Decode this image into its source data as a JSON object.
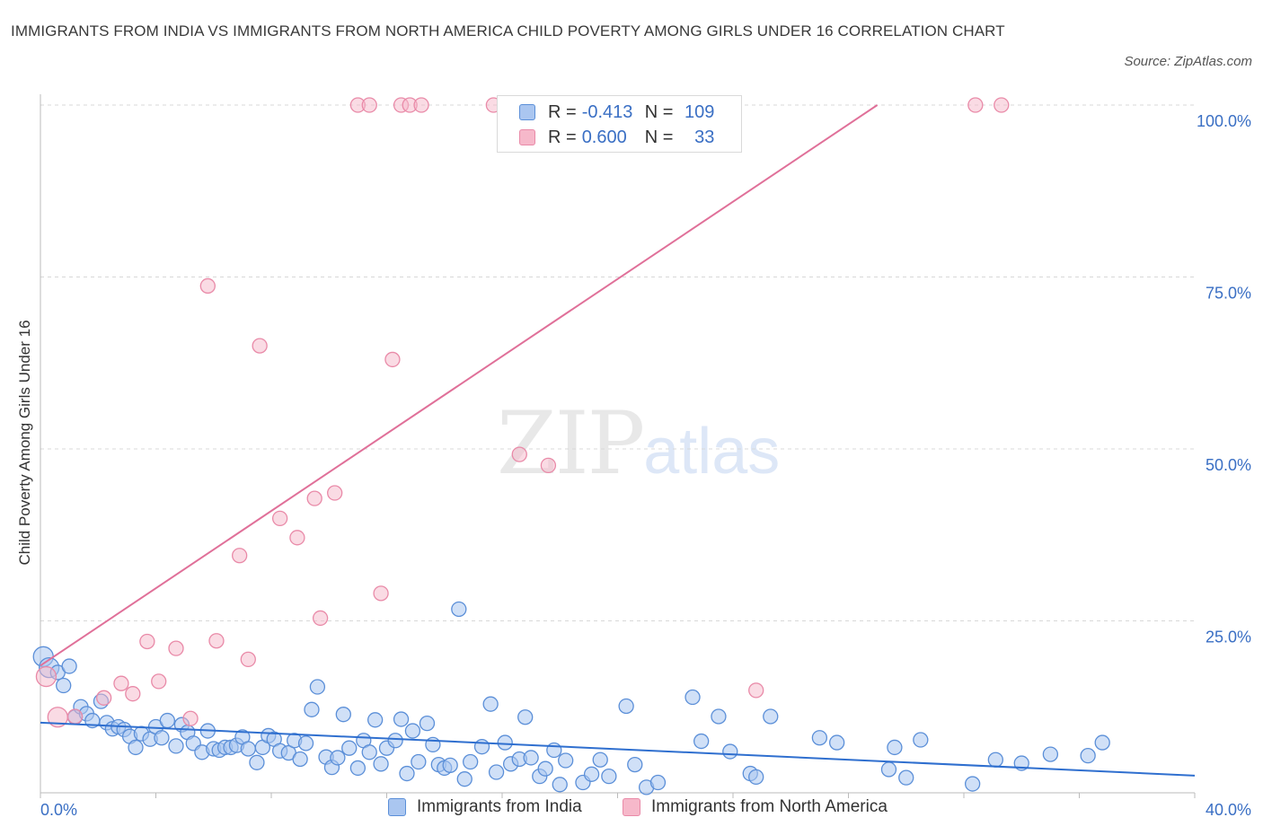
{
  "header": {
    "title": "IMMIGRANTS FROM INDIA VS IMMIGRANTS FROM NORTH AMERICA CHILD POVERTY AMONG GIRLS UNDER 16 CORRELATION CHART",
    "source": "Source: ZipAtlas.com"
  },
  "watermark": {
    "zip": "ZIP",
    "atlas": "atlas"
  },
  "colors": {
    "india_fill": "#aac6f0",
    "india_stroke": "#5b8fd8",
    "india_line": "#2f6fcf",
    "na_fill": "#f6b8ca",
    "na_stroke": "#e98aa8",
    "na_line": "#e07099",
    "tick_label": "#3a6fc4",
    "grid": "#d8d8d8"
  },
  "legend": {
    "rows": [
      {
        "r_label": "R =",
        "r_value": "-0.413",
        "n_label": "N =",
        "n_value": "109"
      },
      {
        "r_label": "R =",
        "r_value": "0.600",
        "n_label": "N =",
        "n_value": "33"
      }
    ]
  },
  "bottom_legend": {
    "india": "Immigrants from India",
    "na": "Immigrants from North America"
  },
  "chart_data": {
    "type": "scatter",
    "title": "IMMIGRANTS FROM INDIA VS IMMIGRANTS FROM NORTH AMERICA CHILD POVERTY AMONG GIRLS UNDER 16 CORRELATION CHART",
    "xlabel": "",
    "ylabel": "Child Poverty Among Girls Under 16",
    "xlim": [
      0,
      40
    ],
    "ylim": [
      0,
      100
    ],
    "x_tick_labels": [
      {
        "value": 0,
        "label": "0.0%"
      },
      {
        "value": 40,
        "label": "40.0%"
      }
    ],
    "y_tick_labels": [
      {
        "value": 25,
        "label": "25.0%"
      },
      {
        "value": 50,
        "label": "50.0%"
      },
      {
        "value": 75,
        "label": "75.0%"
      },
      {
        "value": 100,
        "label": "100.0%"
      }
    ],
    "grid": true,
    "legend_position": "top-center",
    "series": [
      {
        "name": "Immigrants from India",
        "r": -0.413,
        "n": 109,
        "trend": {
          "x": [
            0,
            40
          ],
          "y": [
            10.2,
            2.5
          ]
        },
        "points": [
          [
            0.1,
            19.8
          ],
          [
            0.3,
            18.2
          ],
          [
            0.6,
            17.5
          ],
          [
            0.8,
            15.6
          ],
          [
            1.0,
            18.4
          ],
          [
            1.2,
            11.0
          ],
          [
            1.4,
            12.5
          ],
          [
            1.6,
            11.5
          ],
          [
            1.8,
            10.5
          ],
          [
            2.1,
            13.3
          ],
          [
            2.3,
            10.2
          ],
          [
            2.5,
            9.3
          ],
          [
            2.7,
            9.6
          ],
          [
            2.9,
            9.2
          ],
          [
            3.1,
            8.2
          ],
          [
            3.3,
            6.6
          ],
          [
            3.5,
            8.6
          ],
          [
            3.8,
            7.8
          ],
          [
            4.0,
            9.6
          ],
          [
            4.2,
            8.0
          ],
          [
            4.4,
            10.5
          ],
          [
            4.7,
            6.8
          ],
          [
            4.9,
            9.9
          ],
          [
            5.1,
            8.8
          ],
          [
            5.3,
            7.2
          ],
          [
            5.6,
            5.9
          ],
          [
            5.8,
            9.0
          ],
          [
            6.0,
            6.4
          ],
          [
            6.2,
            6.2
          ],
          [
            6.4,
            6.6
          ],
          [
            6.6,
            6.6
          ],
          [
            6.8,
            6.9
          ],
          [
            7.0,
            8.1
          ],
          [
            7.2,
            6.4
          ],
          [
            7.5,
            4.4
          ],
          [
            7.7,
            6.6
          ],
          [
            7.9,
            8.3
          ],
          [
            8.1,
            7.8
          ],
          [
            8.3,
            6.1
          ],
          [
            8.6,
            5.8
          ],
          [
            8.8,
            7.6
          ],
          [
            9.0,
            4.9
          ],
          [
            9.2,
            7.2
          ],
          [
            9.4,
            12.1
          ],
          [
            9.6,
            15.4
          ],
          [
            9.9,
            5.2
          ],
          [
            10.1,
            3.7
          ],
          [
            10.3,
            5.1
          ],
          [
            10.5,
            11.4
          ],
          [
            10.7,
            6.5
          ],
          [
            11.0,
            3.6
          ],
          [
            11.2,
            7.6
          ],
          [
            11.4,
            5.9
          ],
          [
            11.6,
            10.6
          ],
          [
            11.8,
            4.2
          ],
          [
            12.0,
            6.5
          ],
          [
            12.3,
            7.6
          ],
          [
            12.5,
            10.7
          ],
          [
            12.7,
            2.8
          ],
          [
            12.9,
            9.0
          ],
          [
            13.1,
            4.5
          ],
          [
            13.4,
            10.1
          ],
          [
            13.6,
            7.0
          ],
          [
            13.8,
            4.1
          ],
          [
            14.0,
            3.6
          ],
          [
            14.2,
            4.0
          ],
          [
            14.5,
            26.7
          ],
          [
            14.7,
            2.0
          ],
          [
            14.9,
            4.5
          ],
          [
            15.3,
            6.7
          ],
          [
            15.6,
            12.9
          ],
          [
            15.8,
            3.0
          ],
          [
            16.1,
            7.3
          ],
          [
            16.3,
            4.2
          ],
          [
            16.6,
            4.9
          ],
          [
            16.8,
            11.0
          ],
          [
            17.0,
            5.1
          ],
          [
            17.3,
            2.4
          ],
          [
            17.5,
            3.5
          ],
          [
            17.8,
            6.2
          ],
          [
            18.0,
            1.2
          ],
          [
            18.2,
            4.7
          ],
          [
            18.8,
            1.5
          ],
          [
            19.1,
            2.7
          ],
          [
            19.4,
            4.8
          ],
          [
            19.7,
            2.4
          ],
          [
            20.3,
            12.6
          ],
          [
            20.6,
            4.1
          ],
          [
            21.0,
            0.8
          ],
          [
            21.4,
            1.5
          ],
          [
            22.6,
            13.9
          ],
          [
            22.9,
            7.5
          ],
          [
            23.5,
            11.1
          ],
          [
            23.9,
            6.0
          ],
          [
            24.6,
            2.8
          ],
          [
            24.8,
            2.3
          ],
          [
            25.3,
            11.1
          ],
          [
            27.0,
            8.0
          ],
          [
            27.6,
            7.3
          ],
          [
            29.4,
            3.4
          ],
          [
            29.6,
            6.6
          ],
          [
            30.0,
            2.2
          ],
          [
            30.5,
            7.7
          ],
          [
            32.3,
            1.3
          ],
          [
            33.1,
            4.8
          ],
          [
            34.0,
            4.3
          ],
          [
            35.0,
            5.6
          ],
          [
            36.3,
            5.4
          ],
          [
            36.8,
            7.3
          ]
        ]
      },
      {
        "name": "Immigrants from North America",
        "r": 0.6,
        "n": 33,
        "trend": {
          "x": [
            0,
            29
          ],
          "y": [
            18.5,
            100
          ]
        },
        "points": [
          [
            0.2,
            16.9
          ],
          [
            0.6,
            11.0
          ],
          [
            1.2,
            11.1
          ],
          [
            2.2,
            13.8
          ],
          [
            2.8,
            15.9
          ],
          [
            3.2,
            14.4
          ],
          [
            3.7,
            22.0
          ],
          [
            4.1,
            16.2
          ],
          [
            4.7,
            21.0
          ],
          [
            5.2,
            10.8
          ],
          [
            5.8,
            73.7
          ],
          [
            6.1,
            22.1
          ],
          [
            6.9,
            34.5
          ],
          [
            7.2,
            19.4
          ],
          [
            7.6,
            65.0
          ],
          [
            8.3,
            39.9
          ],
          [
            8.9,
            37.1
          ],
          [
            9.5,
            42.8
          ],
          [
            9.7,
            25.4
          ],
          [
            10.2,
            43.6
          ],
          [
            11.0,
            100.0
          ],
          [
            11.4,
            100.0
          ],
          [
            11.8,
            29.0
          ],
          [
            12.2,
            63.0
          ],
          [
            12.5,
            100.0
          ],
          [
            12.8,
            100.0
          ],
          [
            13.2,
            100.0
          ],
          [
            15.7,
            100.0
          ],
          [
            16.6,
            49.2
          ],
          [
            17.6,
            47.6
          ],
          [
            24.8,
            14.9
          ],
          [
            32.4,
            100.0
          ],
          [
            33.3,
            100.0
          ]
        ]
      }
    ]
  }
}
